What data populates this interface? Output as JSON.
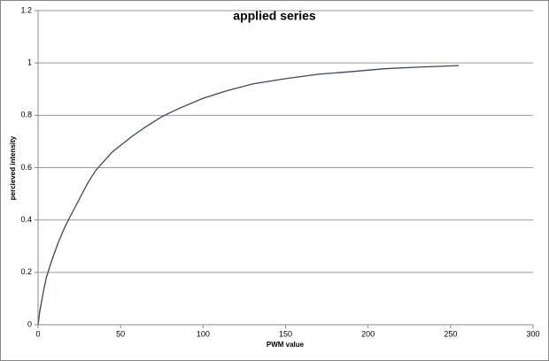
{
  "chart_data": {
    "type": "line",
    "title": "applied series",
    "x_label": "PWM value",
    "y_label": "percieved intensity",
    "series": [
      {
        "color": "#3b4760",
        "x": [
          0,
          1,
          3,
          5,
          8,
          12,
          16,
          20,
          25,
          30,
          35,
          40,
          45,
          50,
          57,
          65,
          75,
          85,
          100,
          115,
          130,
          150,
          170,
          190,
          210,
          230,
          255
        ],
        "values": [
          0,
          0.05,
          0.12,
          0.18,
          0.24,
          0.31,
          0.37,
          0.42,
          0.48,
          0.54,
          0.59,
          0.625,
          0.66,
          0.685,
          0.72,
          0.755,
          0.795,
          0.825,
          0.865,
          0.895,
          0.92,
          0.94,
          0.957,
          0.967,
          0.978,
          0.984,
          0.99
        ]
      }
    ],
    "xlim": [
      0,
      300
    ],
    "xticks": [
      0,
      50,
      100,
      150,
      200,
      250,
      300
    ],
    "ylim": [
      0,
      1.2
    ],
    "yticks": [
      0,
      0.2,
      0.4,
      0.6,
      0.8,
      1,
      1.2
    ],
    "grid": true
  }
}
